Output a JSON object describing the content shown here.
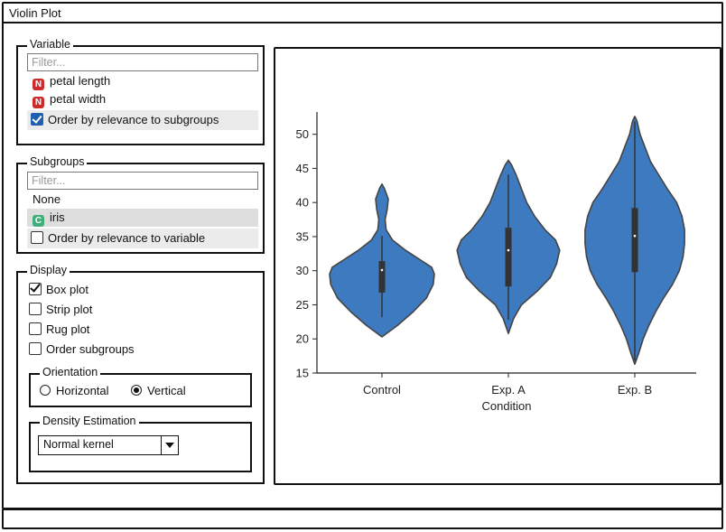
{
  "window": {
    "title": "Violin Plot"
  },
  "variable": {
    "legend": "Variable",
    "filter_placeholder": "Filter...",
    "items": [
      {
        "tag": "N",
        "label": "petal length"
      },
      {
        "tag": "N",
        "label": "petal width"
      }
    ],
    "order_label": "Order by relevance to subgroups",
    "order_checked": true
  },
  "subgroups": {
    "legend": "Subgroups",
    "filter_placeholder": "Filter...",
    "items": [
      {
        "label": "None"
      },
      {
        "tag": "C",
        "label": "iris",
        "selected": true
      }
    ],
    "order_label": "Order by relevance to variable",
    "order_checked": false
  },
  "display": {
    "legend": "Display",
    "box_plot": "Box plot",
    "strip_plot": "Strip plot",
    "rug_plot": "Rug plot",
    "order_subgroups": "Order subgroups",
    "box_plot_checked": true,
    "orientation": {
      "legend": "Orientation",
      "horizontal": "Horizontal",
      "vertical": "Vertical",
      "selected": "Vertical"
    },
    "density": {
      "legend": "Density Estimation",
      "value": "Normal kernel"
    }
  },
  "chart_data": {
    "type": "violin",
    "xlabel": "Condition",
    "ylabel": "",
    "categories": [
      "Control",
      "Exp. A",
      "Exp. B"
    ],
    "ylim": [
      15,
      53
    ],
    "yticks": [
      15,
      20,
      25,
      30,
      35,
      40,
      45,
      50
    ],
    "ytick_labels": [
      "15",
      "20",
      "25",
      "30",
      "35",
      "40",
      "45",
      "50"
    ],
    "color": "#3d7abf",
    "violins": [
      {
        "name": "Control",
        "min": 20.3,
        "max": 42.7,
        "q1": 26.8,
        "median": 30.1,
        "q3": 31.4,
        "whisker_low": 23.2,
        "whisker_high": 35.1,
        "density": [
          [
            20.3,
            0.0
          ],
          [
            22,
            0.3
          ],
          [
            24,
            0.6
          ],
          [
            26,
            0.85
          ],
          [
            28,
            0.98
          ],
          [
            29.5,
            1.0
          ],
          [
            30.5,
            0.95
          ],
          [
            31.5,
            0.75
          ],
          [
            33,
            0.45
          ],
          [
            34.5,
            0.2
          ],
          [
            36,
            0.08
          ],
          [
            37.5,
            0.06
          ],
          [
            39,
            0.1
          ],
          [
            40.5,
            0.12
          ],
          [
            42,
            0.05
          ],
          [
            42.7,
            0.0
          ]
        ]
      },
      {
        "name": "Exp. A",
        "min": 20.8,
        "max": 46.2,
        "q1": 27.7,
        "median": 33.0,
        "q3": 36.3,
        "whisker_low": 22.8,
        "whisker_high": 44.1,
        "density": [
          [
            20.8,
            0.0
          ],
          [
            23,
            0.1
          ],
          [
            25,
            0.25
          ],
          [
            27,
            0.55
          ],
          [
            29,
            0.8
          ],
          [
            31,
            0.92
          ],
          [
            33,
            0.98
          ],
          [
            34.5,
            0.9
          ],
          [
            36,
            0.7
          ],
          [
            38,
            0.5
          ],
          [
            40,
            0.35
          ],
          [
            42,
            0.25
          ],
          [
            44,
            0.15
          ],
          [
            45.5,
            0.06
          ],
          [
            46.2,
            0.0
          ]
        ]
      },
      {
        "name": "Exp. B",
        "min": 16.3,
        "max": 52.6,
        "q1": 29.8,
        "median": 35.1,
        "q3": 39.2,
        "whisker_low": 16.8,
        "whisker_high": 51.9,
        "density": [
          [
            16.3,
            0.0
          ],
          [
            18,
            0.08
          ],
          [
            20,
            0.16
          ],
          [
            22,
            0.27
          ],
          [
            24,
            0.4
          ],
          [
            26,
            0.55
          ],
          [
            28,
            0.72
          ],
          [
            30,
            0.85
          ],
          [
            32,
            0.92
          ],
          [
            34,
            0.95
          ],
          [
            36,
            0.95
          ],
          [
            38,
            0.9
          ],
          [
            40,
            0.8
          ],
          [
            42,
            0.62
          ],
          [
            44,
            0.46
          ],
          [
            46,
            0.3
          ],
          [
            48,
            0.2
          ],
          [
            50,
            0.1
          ],
          [
            52,
            0.04
          ],
          [
            52.6,
            0.0
          ]
        ]
      }
    ]
  }
}
